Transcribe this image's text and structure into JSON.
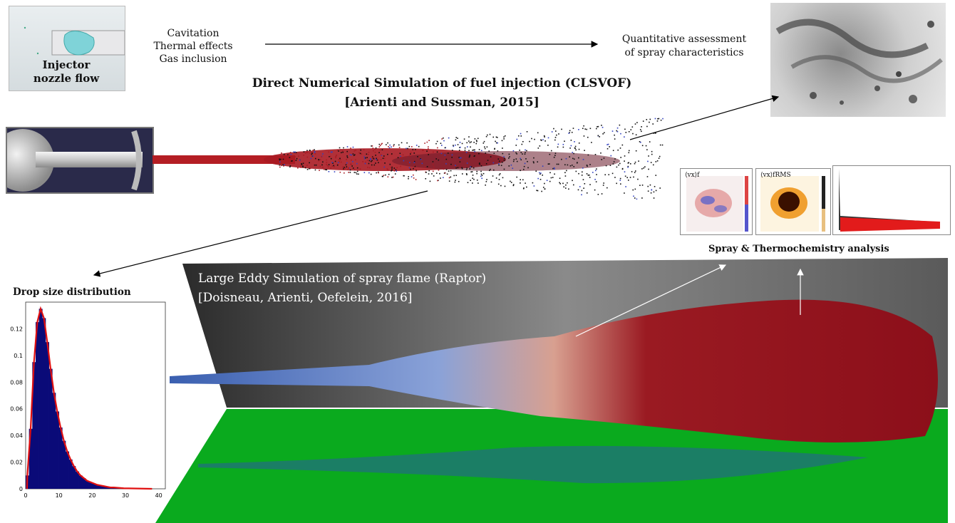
{
  "injector": {
    "label_line1": "Injector",
    "label_line2": "nozzle flow"
  },
  "physics": {
    "line1": "Cavitation",
    "line2": "Thermal effects",
    "line3": "Gas inclusion"
  },
  "quant": {
    "line1": "Quantitative assessment",
    "line2": "of spray characteristics"
  },
  "dns": {
    "title_line1": "Direct Numerical Simulation of fuel injection (CLSVOF)",
    "title_line2": "[Arienti and Sussman, 2015]"
  },
  "analysis": {
    "label": "Spray & Thermochemistry analysis",
    "panel1_label": "⟨vx⟩f",
    "panel2_label": "⟨vx⟩fRMS"
  },
  "les": {
    "title_line1": "Large Eddy Simulation of spray flame (Raptor)",
    "title_line2": "[Doisneau, Arienti, Oefelein, 2016]"
  },
  "histogram": {
    "label": "Drop size distribution",
    "yticks": [
      "0.12",
      "0.1",
      "0.08",
      "0.06",
      "0.04",
      "0.02",
      "0"
    ],
    "xticks": [
      "0",
      "10",
      "20",
      "30",
      "40"
    ]
  },
  "colors": {
    "hist_fill": "#0a0a78",
    "fit_line": "#e01010",
    "ground": "#0aaa1e",
    "spray_red": "#8c0f1a",
    "spray_blue": "#3a5fb0"
  },
  "chart_data": {
    "type": "bar",
    "x": [
      1,
      2,
      3,
      4,
      5,
      6,
      7,
      8,
      9,
      10,
      11,
      12,
      13,
      14,
      15,
      16,
      17,
      18,
      19,
      20,
      21,
      22,
      23,
      24,
      25,
      26,
      27,
      28,
      29,
      30
    ],
    "values": [
      0.01,
      0.045,
      0.095,
      0.125,
      0.135,
      0.128,
      0.11,
      0.09,
      0.072,
      0.058,
      0.046,
      0.036,
      0.028,
      0.022,
      0.017,
      0.013,
      0.01,
      0.008,
      0.006,
      0.005,
      0.004,
      0.003,
      0.0025,
      0.002,
      0.0015,
      0.001,
      0.001,
      0.0008,
      0.0006,
      0.0004
    ],
    "xlim": [
      0,
      42
    ],
    "ylim": [
      0,
      0.14
    ],
    "xlabel": "",
    "ylabel": "",
    "grid": false
  }
}
